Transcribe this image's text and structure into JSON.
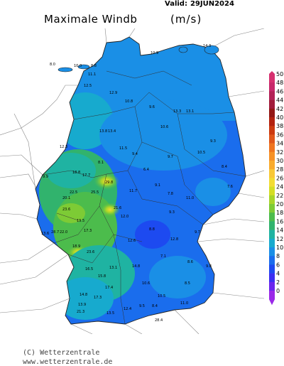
{
  "header": {
    "valid_label": "Valid:",
    "valid_date": "29JUN2024",
    "title": "Maximale Windb",
    "unit": "(m/s)"
  },
  "footer": {
    "copyright": "(C) Wetterzentrale",
    "url": "www.wetterzentrale.de"
  },
  "legend": {
    "ticks": [
      "50",
      "48",
      "46",
      "44",
      "42",
      "40",
      "38",
      "36",
      "34",
      "32",
      "30",
      "28",
      "26",
      "24",
      "22",
      "20",
      "18",
      "16",
      "14",
      "12",
      "10",
      "8",
      "6",
      "4",
      "2",
      "0"
    ],
    "colors": [
      "#d6306f",
      "#c7286a",
      "#b22156",
      "#a11c3b",
      "#931715",
      "#b3220f",
      "#cc3a10",
      "#e0561a",
      "#ef741f",
      "#f69126",
      "#f9ab2d",
      "#f8c836",
      "#f2dc33",
      "#d4de25",
      "#a8d52a",
      "#7dcb35",
      "#4cbc4c",
      "#31b36d",
      "#1fb3a2",
      "#17aace",
      "#1a8fe6",
      "#1a6ded",
      "#1d4af0",
      "#3b2ef2",
      "#6a25ee",
      "#9a28e8"
    ]
  },
  "map_labels": {
    "cities": [
      {
        "text": "14.3"
      },
      {
        "text": "10.9"
      },
      {
        "text": "8.0"
      },
      {
        "text": "10.0"
      },
      {
        "text": "8.8"
      },
      {
        "text": "11.1"
      },
      {
        "text": "13.3"
      },
      {
        "text": "13.1"
      },
      {
        "text": "12.9"
      },
      {
        "text": "10.8"
      },
      {
        "text": "9.6"
      },
      {
        "text": "10.6"
      },
      {
        "text": "12.5"
      },
      {
        "text": "13.8"
      },
      {
        "text": "13.4"
      },
      {
        "text": "10.5"
      },
      {
        "text": "9.3"
      },
      {
        "text": "8.4"
      },
      {
        "text": "7.6"
      },
      {
        "text": "9.7"
      },
      {
        "text": "12.3"
      },
      {
        "text": "18.8"
      },
      {
        "text": "17.7"
      },
      {
        "text": "22.5"
      },
      {
        "text": "20.1"
      },
      {
        "text": "25.5"
      },
      {
        "text": "23.6"
      },
      {
        "text": "29.8"
      },
      {
        "text": "21.6"
      },
      {
        "text": "13.6"
      },
      {
        "text": "28.7"
      },
      {
        "text": "22.0"
      },
      {
        "text": "19.5"
      },
      {
        "text": "17.3"
      },
      {
        "text": "23.6"
      },
      {
        "text": "18.9"
      },
      {
        "text": "16.5"
      },
      {
        "text": "15.8"
      },
      {
        "text": "13.1"
      },
      {
        "text": "17.4"
      },
      {
        "text": "10.6"
      },
      {
        "text": "9.3"
      },
      {
        "text": "11.0"
      },
      {
        "text": "12.8"
      },
      {
        "text": "8.8"
      },
      {
        "text": "7.1"
      },
      {
        "text": "8.6"
      },
      {
        "text": "9.8"
      },
      {
        "text": "12.6"
      },
      {
        "text": "11.5"
      },
      {
        "text": "9.4"
      },
      {
        "text": "6.4"
      },
      {
        "text": "9.1"
      },
      {
        "text": "7.8"
      },
      {
        "text": "9.7"
      },
      {
        "text": "11.0"
      },
      {
        "text": "14.8"
      },
      {
        "text": "13.9"
      },
      {
        "text": "17.3"
      },
      {
        "text": "21.3"
      },
      {
        "text": "13.5"
      },
      {
        "text": "12.4"
      },
      {
        "text": "9.5"
      },
      {
        "text": "8.4"
      },
      {
        "text": "10.5"
      },
      {
        "text": "28.4"
      },
      {
        "text": "11.7"
      },
      {
        "text": "12.0"
      },
      {
        "text": "8.5"
      },
      {
        "text": "14.8"
      },
      {
        "text": "8.1"
      },
      {
        "text": "9.9"
      }
    ]
  }
}
